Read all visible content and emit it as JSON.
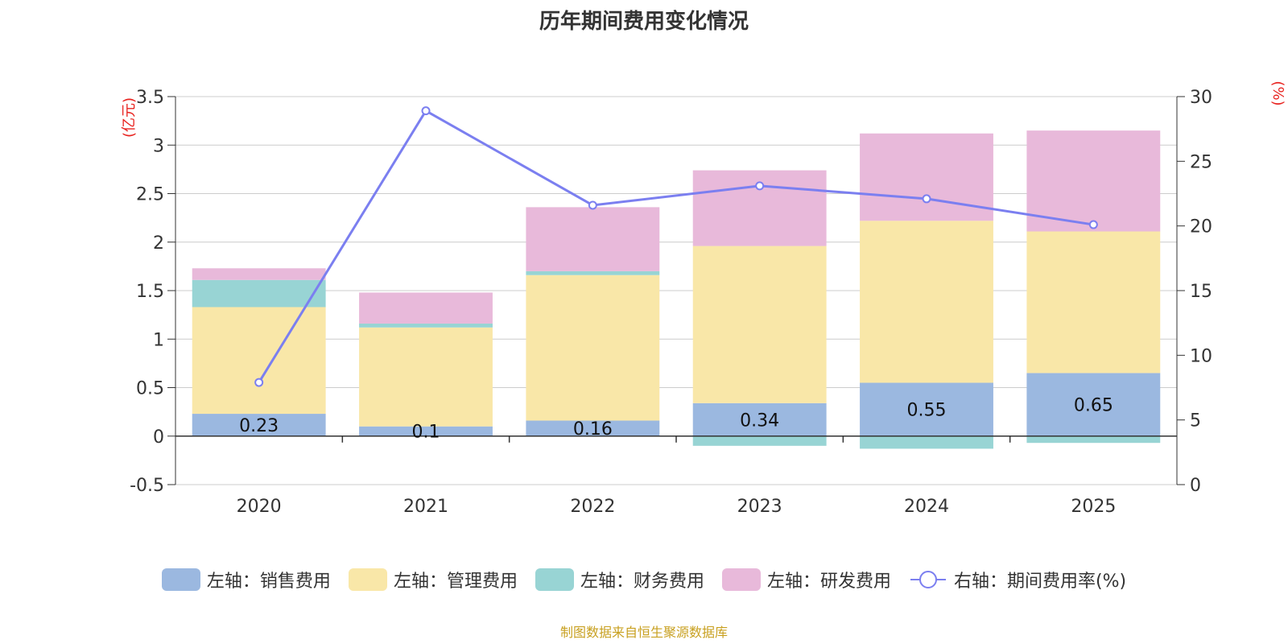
{
  "chart_data": {
    "type": "bar",
    "title": "历年期间费用变化情况",
    "categories": [
      "2020",
      "2021",
      "2022",
      "2023",
      "2024",
      "2025"
    ],
    "y_left": {
      "unit": "(亿元)",
      "ylim": [
        -0.5,
        3.5
      ],
      "ticks": [
        -0.5,
        0,
        0.5,
        1,
        1.5,
        2,
        2.5,
        3,
        3.5
      ]
    },
    "y_right": {
      "unit": "(%)",
      "ylim": [
        0,
        30
      ],
      "ticks": [
        0,
        5,
        10,
        15,
        20,
        25,
        30
      ]
    },
    "series": [
      {
        "name": "左轴：销售费用",
        "kind": "bar",
        "color": "#9bb8e0",
        "values": [
          0.23,
          0.1,
          0.16,
          0.34,
          0.55,
          0.65
        ],
        "labels": [
          "0.23",
          "0.1",
          "0.16",
          "0.34",
          "0.55",
          "0.65"
        ]
      },
      {
        "name": "左轴：管理费用",
        "kind": "bar",
        "color": "#f9e7a8",
        "values": [
          1.1,
          1.02,
          1.5,
          1.62,
          1.67,
          1.46
        ]
      },
      {
        "name": "左轴：财务费用",
        "kind": "bar",
        "color": "#98d4d4",
        "values": [
          0.28,
          0.04,
          0.04,
          -0.1,
          -0.13,
          -0.07
        ]
      },
      {
        "name": "左轴：研发费用",
        "kind": "bar",
        "color": "#e8b9da",
        "values": [
          0.12,
          0.32,
          0.66,
          0.78,
          0.9,
          1.04
        ]
      },
      {
        "name": "右轴：期间费用率(%)",
        "kind": "line",
        "color": "#7b7ff0",
        "values": [
          7.9,
          28.9,
          21.6,
          23.1,
          22.1,
          20.1
        ]
      }
    ],
    "legend_position": "bottom"
  },
  "source": "制图数据来自恒生聚源数据库"
}
